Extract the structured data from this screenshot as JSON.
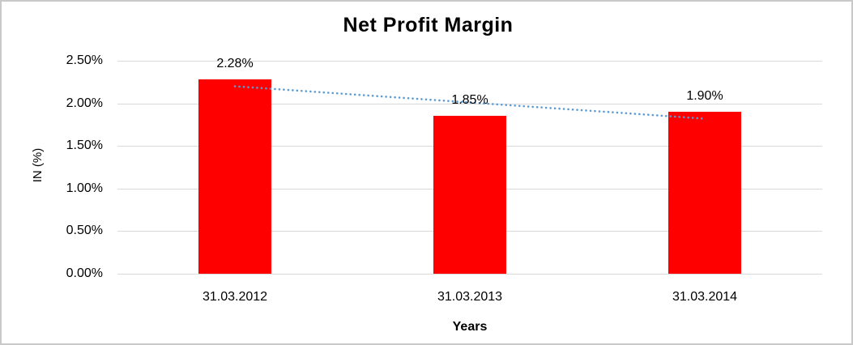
{
  "chart_data": {
    "type": "bar",
    "title": "Net Profit Margin",
    "categories": [
      "31.03.2012",
      "31.03.2013",
      "31.03.2014"
    ],
    "values": [
      2.28,
      1.85,
      1.9
    ],
    "value_labels": [
      "2.28%",
      "1.85%",
      "1.90%"
    ],
    "xlabel": "Years",
    "ylabel": "IN (%)",
    "y_ticks": [
      "0.00%",
      "0.50%",
      "1.00%",
      "1.50%",
      "2.00%",
      "2.50%"
    ],
    "y_tick_values": [
      0,
      0.5,
      1.0,
      1.5,
      2.0,
      2.5
    ],
    "ylim": [
      0,
      2.5
    ],
    "bar_color": "#ff0000",
    "gridline_color": "#d9d9d9",
    "frame_border_color": "#c9c9c9",
    "legend_position": "none",
    "grid": "horizontal",
    "trendline": {
      "style": "dotted",
      "color": "#5b9bd5",
      "start_value": 2.2,
      "end_value": 1.82
    }
  }
}
